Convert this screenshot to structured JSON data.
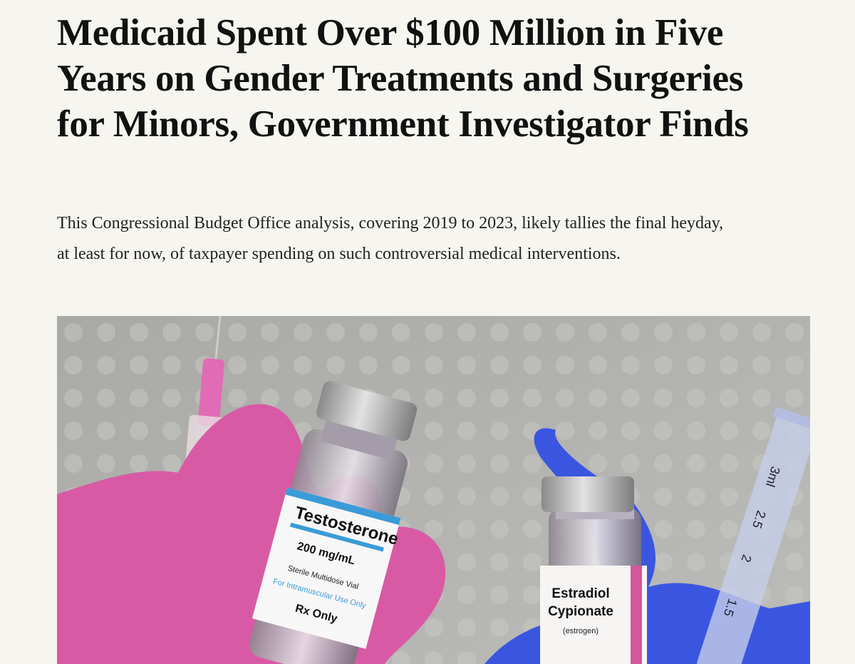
{
  "article": {
    "headline": "Medicaid Spent Over $100 Million in Five Years on Gender Treatments and Surgeries for Minors, Government Investigator Finds",
    "dek": "This Congressional Budget Office analysis, covering 2019 to 2023, likely tallies the final heyday, at least for now, of taxpayer spending on such controversial medical interventions.",
    "image": {
      "vial_1": {
        "name": "Testosterone",
        "strength": "200 mg/mL",
        "note": "Sterile Multidose Vial",
        "use": "For Intramuscular Use Only",
        "rx": "Rx Only"
      },
      "vial_2": {
        "name_1": "Estradiol",
        "name_2": "Cypionate",
        "note": "(estrogen)"
      },
      "syringe_marks": [
        "3ml",
        "2.5",
        "2",
        "1.5"
      ]
    }
  }
}
